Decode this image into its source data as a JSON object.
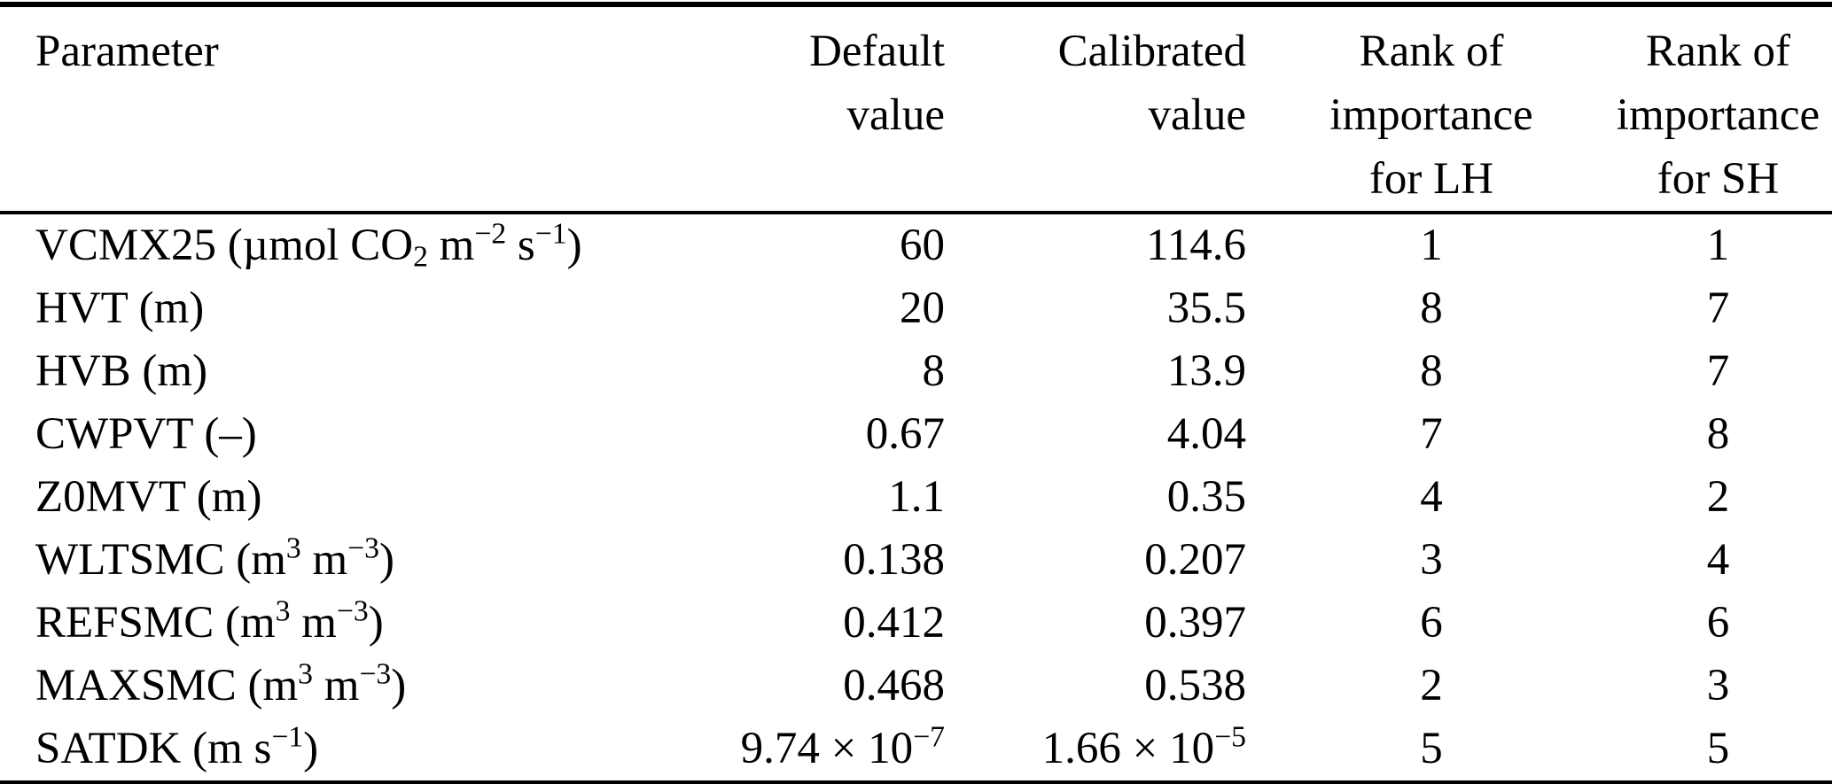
{
  "table": {
    "columns": [
      {
        "id": "parameter",
        "align": "left",
        "label": [
          "Parameter"
        ]
      },
      {
        "id": "default",
        "align": "right",
        "label": [
          "Default",
          "value"
        ]
      },
      {
        "id": "calibrated",
        "align": "right",
        "label": [
          "Calibrated",
          "value"
        ]
      },
      {
        "id": "rank_lh",
        "align": "center",
        "label": [
          "Rank of",
          "importance",
          "for LH"
        ]
      },
      {
        "id": "rank_sh",
        "align": "center",
        "label": [
          "Rank of",
          "importance",
          "for SH"
        ]
      }
    ],
    "rows": [
      {
        "parameter": "VCMX25 (µmol CO_2_ m^−2^ s^−1^)",
        "default": "60",
        "calibrated": "114.6",
        "rank_lh": "1",
        "rank_sh": "1"
      },
      {
        "parameter": "HVT (m)",
        "default": "20",
        "calibrated": "35.5",
        "rank_lh": "8",
        "rank_sh": "7"
      },
      {
        "parameter": "HVB (m)",
        "default": "8",
        "calibrated": "13.9",
        "rank_lh": "8",
        "rank_sh": "7"
      },
      {
        "parameter": "CWPVT (–)",
        "default": "0.67",
        "calibrated": "4.04",
        "rank_lh": "7",
        "rank_sh": "8"
      },
      {
        "parameter": "Z0MVT (m)",
        "default": "1.1",
        "calibrated": "0.35",
        "rank_lh": "4",
        "rank_sh": "2"
      },
      {
        "parameter": "WLTSMC (m^3^ m^−3^)",
        "default": "0.138",
        "calibrated": "0.207",
        "rank_lh": "3",
        "rank_sh": "4"
      },
      {
        "parameter": "REFSMC (m^3^ m^−3^)",
        "default": "0.412",
        "calibrated": "0.397",
        "rank_lh": "6",
        "rank_sh": "6"
      },
      {
        "parameter": "MAXSMC (m^3^ m^−3^)",
        "default": "0.468",
        "calibrated": "0.538",
        "rank_lh": "2",
        "rank_sh": "3"
      },
      {
        "parameter": "SATDK (m s^−1^)",
        "default": "9.74 × 10^−7^",
        "calibrated": "1.66 × 10^−5^",
        "rank_lh": "5",
        "rank_sh": "5"
      }
    ],
    "text_color": "#000000",
    "background_color": "#ffffff"
  }
}
